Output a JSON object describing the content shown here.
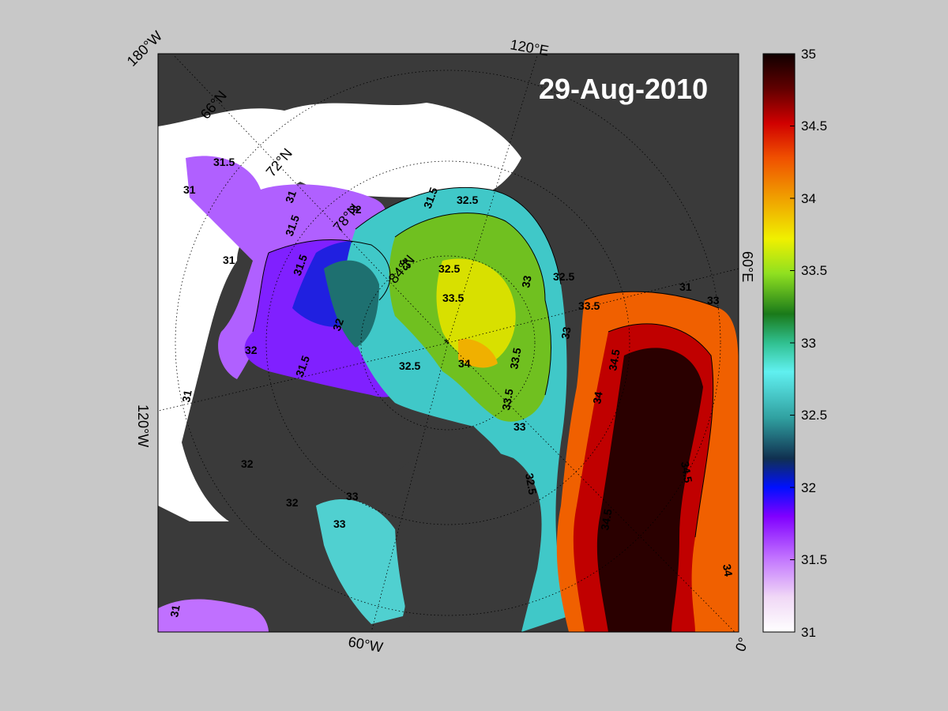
{
  "map": {
    "date": "29-Aug-2010",
    "longitude_labels": {
      "top_left": "180°W",
      "top_right": "120°E",
      "right": "60°E",
      "left": "120°W",
      "bottom": "60°W",
      "bottom_right": "0°"
    },
    "latitude_labels": [
      "66°N",
      "72°N",
      "78°N",
      "84°N"
    ],
    "contour_labels": [
      "31.5",
      "31",
      "31",
      "31",
      "31.5",
      "32",
      "31.5",
      "32",
      "32",
      "31.5",
      "32.5",
      "33",
      "32.5",
      "33.5",
      "33",
      "34",
      "33.5",
      "33.5",
      "32.5",
      "33",
      "33.5",
      "34.5",
      "34",
      "34.5",
      "34.5",
      "34",
      "33",
      "32.5",
      "33",
      "33",
      "32",
      "31",
      "31",
      "33",
      "32.5",
      "31.5",
      "32",
      "31"
    ],
    "colorbar": {
      "ticks": [
        "35",
        "34.5",
        "34",
        "33.5",
        "33",
        "32.5",
        "32",
        "31.5",
        "31"
      ],
      "min": 31,
      "max": 35,
      "colors": [
        "#ffffff",
        "#e8c8f0",
        "#a040ff",
        "#0000c8",
        "#208080",
        "#60e0e0",
        "#30b030",
        "#c0f020",
        "#f0d000",
        "#ff6000",
        "#e01000",
        "#400000"
      ]
    }
  }
}
